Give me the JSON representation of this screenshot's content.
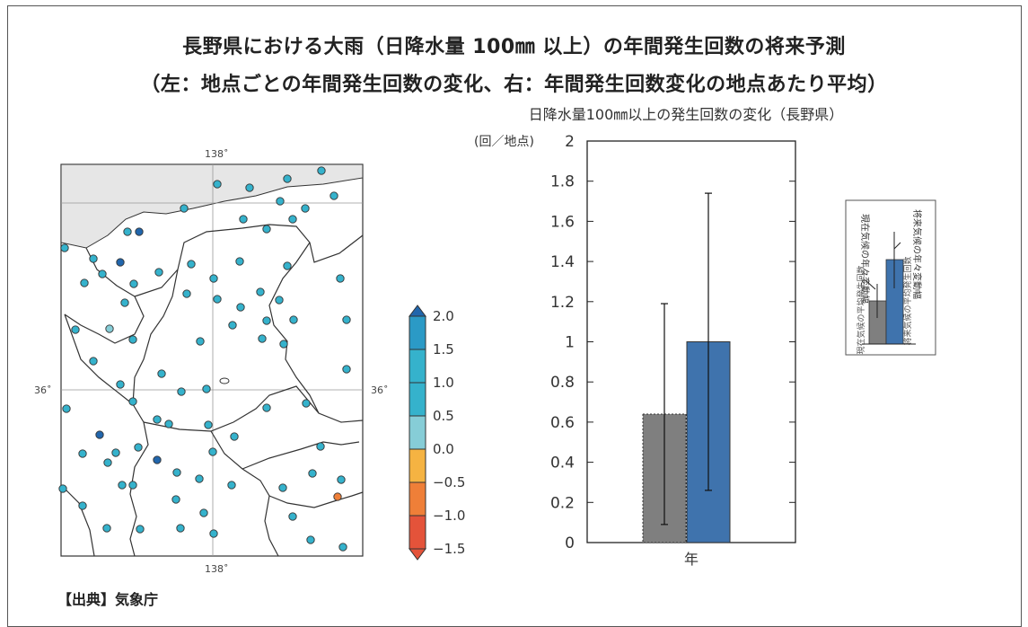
{
  "figure": {
    "title": "長野県における大雨（日降水量 100㎜ 以上）の年間発生回数の将来予測",
    "subtitle": "（左：地点ごとの年間発生回数の変化、右：年間発生回数変化の地点あたり平均）",
    "source": "【出典】気象庁"
  },
  "map": {
    "lon_label": "138˚",
    "lat_label": "36˚",
    "colors": {
      "gt_1_5": "#2166ac",
      "1_0_to_1_5": "#2b9ac6",
      "0_5_to_1_0": "#35b2cc",
      "0_0_to_0_5": "#86cdd7",
      "neg_0_5_to_0": "#f5b342",
      "neg_1_to_neg_0_5": "#ef7f38",
      "lt_neg_1": "#e4533a"
    },
    "colorbar_labels": [
      "2.0",
      "1.5",
      "1.0",
      "0.5",
      "0.0",
      "−0.5",
      "−1.0",
      "−1.5"
    ]
  },
  "chart_data": [
    {
      "type": "bar",
      "title": "日降水量100㎜以上の発生回数の変化（長野県）",
      "ylabel": "(回／地点)",
      "categories": [
        "年"
      ],
      "ylim": [
        0,
        2
      ],
      "yticks": [
        "0",
        "0.2",
        "0.4",
        "0.6",
        "0.8",
        "1",
        "1.2",
        "1.4",
        "1.6",
        "1.8",
        "2"
      ],
      "grid": false,
      "series": [
        {
          "values": [
            0.64
          ],
          "error_low": [
            0.09
          ],
          "error_high": [
            1.19
          ],
          "color": "#7f7f7f"
        },
        {
          "values": [
            1.0
          ],
          "error_low": [
            0.26
          ],
          "error_high": [
            1.74
          ],
          "color": "#3f73ad"
        }
      ]
    }
  ],
  "legend": {
    "label_current_var": "現在気候の年々変動幅",
    "label_current_mean": "現在気候の平均発生回数",
    "label_future_var": "将来気候の年々変動幅",
    "label_future_mean": "将来気候の平均発生回数"
  }
}
